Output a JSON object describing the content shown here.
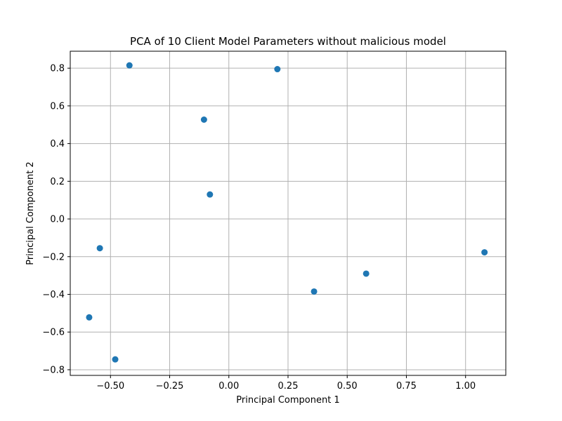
{
  "chart_data": {
    "type": "scatter",
    "title": "PCA of 10 Client Model Parameters without malicious model",
    "xlabel": "Principal Component 1",
    "ylabel": "Principal Component 2",
    "xlim": [
      -0.67,
      1.17
    ],
    "ylim": [
      -0.83,
      0.89
    ],
    "x_ticks": [
      -0.5,
      -0.25,
      0.0,
      0.25,
      0.5,
      0.75,
      1.0
    ],
    "x_tick_labels": [
      "−0.50",
      "−0.25",
      "0.00",
      "0.25",
      "0.50",
      "0.75",
      "1.00"
    ],
    "y_ticks": [
      -0.8,
      -0.6,
      -0.4,
      -0.2,
      0.0,
      0.2,
      0.4,
      0.6,
      0.8
    ],
    "y_tick_labels": [
      "−0.8",
      "−0.6",
      "−0.4",
      "−0.2",
      "0.0",
      "0.2",
      "0.4",
      "0.6",
      "0.8"
    ],
    "grid": true,
    "marker_color": "#1f77b4",
    "points": [
      {
        "x": -0.42,
        "y": 0.815
      },
      {
        "x": 0.205,
        "y": 0.795
      },
      {
        "x": -0.105,
        "y": 0.527
      },
      {
        "x": -0.08,
        "y": 0.13
      },
      {
        "x": -0.545,
        "y": -0.155
      },
      {
        "x": -0.59,
        "y": -0.522
      },
      {
        "x": -0.48,
        "y": -0.745
      },
      {
        "x": 0.36,
        "y": -0.385
      },
      {
        "x": 0.58,
        "y": -0.29
      },
      {
        "x": 1.08,
        "y": -0.177
      }
    ]
  }
}
